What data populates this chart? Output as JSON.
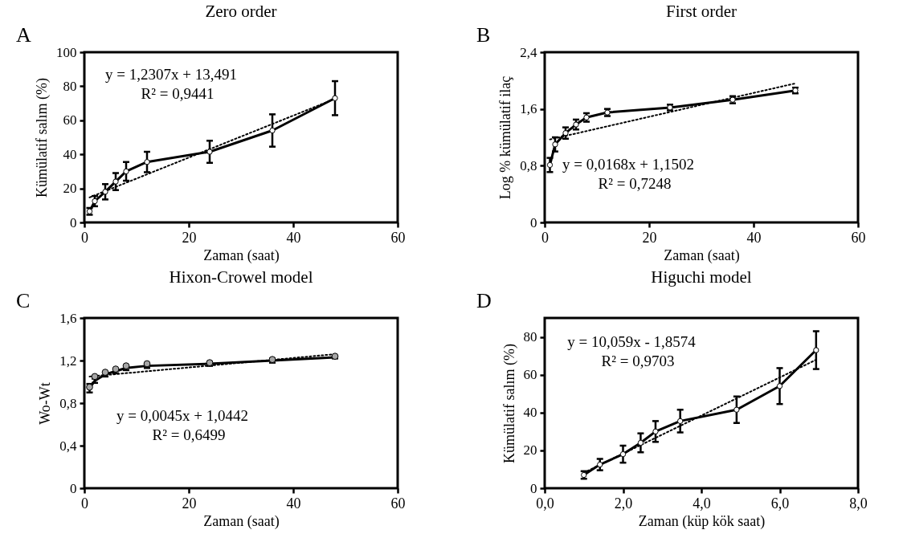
{
  "chart_data": [
    {
      "type": "line",
      "title": "Zero order",
      "xlabel": "Zaman (saat)",
      "ylabel": "Kümülatif salım (%)",
      "x": [
        1,
        2,
        4,
        6,
        8,
        12,
        24,
        36,
        48
      ],
      "xlim": [
        0,
        60
      ],
      "xticks": [
        0,
        20,
        40,
        60
      ],
      "ylim": [
        0,
        100
      ],
      "yticks": [
        0,
        20,
        40,
        60,
        80,
        100
      ],
      "annotations": [
        "A",
        "y = 1,2307x + 13,491",
        "R² = 0,9441"
      ],
      "series": [
        {
          "type": "line",
          "color": "#000000",
          "marker": "circle",
          "values": [
            6.5,
            12.5,
            18,
            24,
            30,
            35.5,
            41.5,
            54,
            73
          ],
          "errors": [
            2,
            3,
            4.5,
            5,
            5.5,
            6,
            6.5,
            9.5,
            10
          ]
        },
        {
          "type": "line",
          "color": "#000000",
          "line_style": "dotted",
          "x": [
            1,
            48
          ],
          "values": [
            14.7,
            72.6
          ]
        }
      ]
    },
    {
      "type": "line",
      "title": "First order",
      "xlabel": "Zaman (saat)",
      "ylabel": "Log % kümülatif ilaç",
      "x": [
        1,
        2,
        4,
        6,
        8,
        12,
        24,
        36,
        48
      ],
      "xlim": [
        0,
        60
      ],
      "xticks": [
        0,
        20,
        40,
        60
      ],
      "ylim": [
        0,
        2.4
      ],
      "yticks": [
        0,
        {
          "value": 0.8,
          "label": "0,8"
        },
        {
          "value": 1.6,
          "label": "1,6"
        },
        {
          "value": 2.4,
          "label": "2,4"
        }
      ],
      "annotations": [
        "B",
        "y = 0,0168x + 1,1502",
        "R² = 0,7248"
      ],
      "series": [
        {
          "type": "line",
          "color": "#000000",
          "marker": "circle",
          "values": [
            0.81,
            1.1,
            1.26,
            1.38,
            1.48,
            1.55,
            1.62,
            1.73,
            1.86
          ],
          "errors": [
            0.1,
            0.1,
            0.08,
            0.07,
            0.06,
            0.05,
            0.04,
            0.05,
            0.04
          ]
        },
        {
          "type": "line",
          "color": "#000000",
          "line_style": "dotted",
          "x": [
            1,
            48
          ],
          "values": [
            1.17,
            1.96
          ]
        }
      ]
    },
    {
      "type": "line",
      "title": "Hixon-Crowel model",
      "xlabel": "Zaman (saat)",
      "ylabel": "Wo-Wt",
      "x": [
        1,
        2,
        4,
        6,
        8,
        12,
        24,
        36,
        48
      ],
      "xlim": [
        0,
        60
      ],
      "xticks": [
        0,
        20,
        40,
        60
      ],
      "ylim": [
        0,
        1.6
      ],
      "yticks": [
        0,
        {
          "value": 0.4,
          "label": "0,4"
        },
        {
          "value": 0.8,
          "label": "0,8"
        },
        {
          "value": 1.2,
          "label": "1,2"
        },
        {
          "value": 1.6,
          "label": "1,6"
        }
      ],
      "annotations": [
        "C",
        "y = 0,0045x + 1,0442",
        "R² = 0,6499"
      ],
      "series": [
        {
          "type": "line",
          "color": "#000000",
          "values": [
            0.94,
            1.01,
            1.07,
            1.1,
            1.13,
            1.15,
            1.17,
            1.2,
            1.23
          ],
          "errors": [
            0.04,
            0.02,
            0.02,
            0.02,
            0.02,
            0.02,
            0.02,
            0.02,
            0.01
          ]
        },
        {
          "type": "scatter",
          "color": "#a6a6a6",
          "marker": "circle",
          "values": [
            0.95,
            1.05,
            1.09,
            1.12,
            1.15,
            1.17,
            1.18,
            1.21,
            1.24
          ]
        },
        {
          "type": "line",
          "color": "#000000",
          "line_style": "dotted",
          "x": [
            1,
            48
          ],
          "values": [
            1.05,
            1.26
          ]
        }
      ]
    },
    {
      "type": "line",
      "title": "Higuchi model",
      "xlabel": "Zaman (küp kök saat)",
      "ylabel": "Kümülatif salım (%)",
      "x": [
        1,
        1.41,
        2,
        2.45,
        2.83,
        3.46,
        4.9,
        6,
        6.93
      ],
      "xlim": [
        0,
        8
      ],
      "xticks": [
        {
          "value": 0,
          "label": "0,0"
        },
        {
          "value": 2,
          "label": "2,0"
        },
        {
          "value": 4,
          "label": "4,0"
        },
        {
          "value": 6,
          "label": "6,0"
        },
        {
          "value": 8,
          "label": "8,0"
        }
      ],
      "ylim": [
        0,
        90
      ],
      "yticks": [
        0,
        20,
        40,
        60,
        80
      ],
      "annotations": [
        "D",
        "y = 10,059x - 1,8574",
        "R² = 0,9703"
      ],
      "series": [
        {
          "type": "line",
          "color": "#000000",
          "marker": "circle",
          "values": [
            7,
            12.5,
            18,
            24,
            30,
            35.5,
            41.5,
            54,
            73
          ],
          "errors": [
            2,
            3,
            4.5,
            5,
            5.5,
            6,
            7,
            9.5,
            10
          ]
        },
        {
          "type": "line",
          "color": "#000000",
          "line_style": "dotted",
          "x": [
            1,
            6.93
          ],
          "values": [
            8.2,
            67.9
          ]
        }
      ]
    }
  ]
}
